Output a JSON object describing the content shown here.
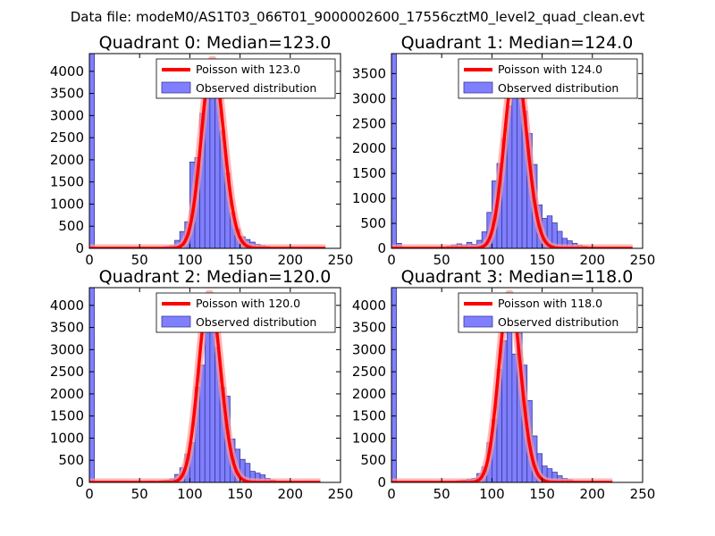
{
  "suptitle": "Data file: modeM0/AS1T03_066T01_9000002600_17556cztM0_level2_quad_clean.evt",
  "colors": {
    "bar_fill": "#7f7fff",
    "bar_edge": "#3a3a99",
    "poisson_line": "#ff0000",
    "poisson_glow": "#ff9999"
  },
  "chart_data": [
    {
      "type": "bar",
      "title": "Quadrant 0: Median=123.0",
      "median": 123.0,
      "legend": [
        "Poisson with 123.0",
        "Observed distribution"
      ],
      "legend_loc": "top-right",
      "xlim": [
        0,
        250
      ],
      "ylim": [
        0,
        4400
      ],
      "xticks": [
        0,
        50,
        100,
        150,
        200,
        250
      ],
      "yticks": [
        0,
        500,
        1000,
        1500,
        2000,
        2500,
        3000,
        3500,
        4000
      ],
      "bin_width": 5,
      "bins": [
        [
          0,
          4400
        ],
        [
          75,
          40
        ],
        [
          80,
          60
        ],
        [
          85,
          180
        ],
        [
          90,
          380
        ],
        [
          95,
          600
        ],
        [
          100,
          1950
        ],
        [
          105,
          2050
        ],
        [
          110,
          3050
        ],
        [
          115,
          3650
        ],
        [
          120,
          4250
        ],
        [
          125,
          3850
        ],
        [
          130,
          2650
        ],
        [
          135,
          1700
        ],
        [
          140,
          800
        ],
        [
          145,
          440
        ],
        [
          150,
          260
        ],
        [
          155,
          200
        ],
        [
          160,
          140
        ],
        [
          165,
          90
        ],
        [
          170,
          60
        ],
        [
          175,
          40
        ],
        [
          180,
          20
        ],
        [
          185,
          10
        ],
        [
          190,
          5
        ]
      ],
      "poisson_x_max": 235
    },
    {
      "type": "bar",
      "title": "Quadrant 1: Median=124.0",
      "median": 124.0,
      "legend": [
        "Poisson with 124.0",
        "Observed distribution"
      ],
      "legend_loc": "top-right",
      "xlim": [
        0,
        250
      ],
      "ylim": [
        0,
        3900
      ],
      "xticks": [
        0,
        50,
        100,
        150,
        200,
        250
      ],
      "yticks": [
        0,
        500,
        1000,
        1500,
        2000,
        2500,
        3000,
        3500
      ],
      "bin_width": 5,
      "bins": [
        [
          0,
          3900
        ],
        [
          5,
          100
        ],
        [
          55,
          40
        ],
        [
          60,
          70
        ],
        [
          65,
          90
        ],
        [
          70,
          70
        ],
        [
          75,
          120
        ],
        [
          80,
          80
        ],
        [
          85,
          160
        ],
        [
          90,
          330
        ],
        [
          95,
          720
        ],
        [
          100,
          1350
        ],
        [
          105,
          1700
        ],
        [
          110,
          2200
        ],
        [
          115,
          2850
        ],
        [
          120,
          3050
        ],
        [
          125,
          3700
        ],
        [
          130,
          2750
        ],
        [
          135,
          2300
        ],
        [
          140,
          1680
        ],
        [
          145,
          870
        ],
        [
          150,
          600
        ],
        [
          155,
          650
        ],
        [
          160,
          510
        ],
        [
          165,
          340
        ],
        [
          170,
          200
        ],
        [
          175,
          150
        ],
        [
          180,
          100
        ],
        [
          185,
          60
        ],
        [
          190,
          40
        ],
        [
          195,
          20
        ]
      ],
      "poisson_x_max": 240
    },
    {
      "type": "bar",
      "title": "Quadrant 2: Median=120.0",
      "median": 120.0,
      "legend": [
        "Poisson with 120.0",
        "Observed distribution"
      ],
      "legend_loc": "top-right",
      "xlim": [
        0,
        250
      ],
      "ylim": [
        0,
        4400
      ],
      "xticks": [
        0,
        50,
        100,
        150,
        200,
        250
      ],
      "yticks": [
        0,
        500,
        1000,
        1500,
        2000,
        2500,
        3000,
        3500,
        4000
      ],
      "bin_width": 5,
      "bins": [
        [
          0,
          4400
        ],
        [
          60,
          30
        ],
        [
          70,
          40
        ],
        [
          75,
          50
        ],
        [
          80,
          80
        ],
        [
          85,
          180
        ],
        [
          90,
          330
        ],
        [
          95,
          640
        ],
        [
          100,
          900
        ],
        [
          105,
          2150
        ],
        [
          110,
          2650
        ],
        [
          115,
          3650
        ],
        [
          120,
          4250
        ],
        [
          125,
          3050
        ],
        [
          130,
          2150
        ],
        [
          135,
          1950
        ],
        [
          140,
          980
        ],
        [
          145,
          750
        ],
        [
          150,
          520
        ],
        [
          155,
          430
        ],
        [
          160,
          250
        ],
        [
          165,
          210
        ],
        [
          170,
          170
        ],
        [
          175,
          90
        ],
        [
          180,
          50
        ],
        [
          185,
          30
        ],
        [
          190,
          20
        ]
      ],
      "poisson_x_max": 230
    },
    {
      "type": "bar",
      "title": "Quadrant 3: Median=118.0",
      "median": 118.0,
      "legend": [
        "Poisson with 118.0",
        "Observed distribution"
      ],
      "legend_loc": "top-right",
      "xlim": [
        0,
        250
      ],
      "ylim": [
        0,
        4400
      ],
      "xticks": [
        0,
        50,
        100,
        150,
        200,
        250
      ],
      "yticks": [
        0,
        500,
        1000,
        1500,
        2000,
        2500,
        3000,
        3500,
        4000
      ],
      "bin_width": 5,
      "bins": [
        [
          0,
          4400
        ],
        [
          60,
          20
        ],
        [
          65,
          40
        ],
        [
          70,
          50
        ],
        [
          75,
          70
        ],
        [
          80,
          90
        ],
        [
          85,
          200
        ],
        [
          90,
          350
        ],
        [
          95,
          900
        ],
        [
          100,
          1430
        ],
        [
          105,
          2550
        ],
        [
          110,
          3200
        ],
        [
          115,
          4250
        ],
        [
          120,
          2900
        ],
        [
          125,
          3370
        ],
        [
          130,
          2650
        ],
        [
          135,
          1850
        ],
        [
          140,
          1050
        ],
        [
          145,
          650
        ],
        [
          150,
          370
        ],
        [
          155,
          310
        ],
        [
          160,
          230
        ],
        [
          165,
          150
        ],
        [
          170,
          90
        ],
        [
          175,
          60
        ],
        [
          180,
          30
        ],
        [
          185,
          20
        ]
      ],
      "poisson_x_max": 220
    }
  ]
}
